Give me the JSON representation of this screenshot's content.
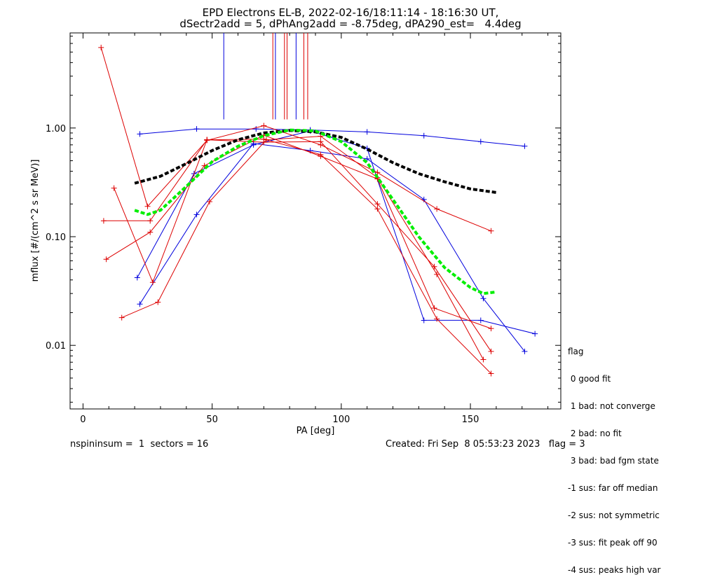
{
  "header": {
    "title_line1": "EPD Electrons EL-B, 2022-02-16/18:11:14 - 18:16:30 UT,",
    "title_line2": "dSectr2add = 5, dPhAng2add = -8.75deg, dPA290_est=   4.4deg"
  },
  "footer": {
    "left": "nspininsum =  1  sectors = 16",
    "right": "Created: Fri Sep  8 05:53:23 2023   flag = 3"
  },
  "flag_legend": {
    "title": "flag",
    "lines": [
      " 0 good fit",
      " 1 bad: not converge",
      " 2 bad: no fit",
      " 3 bad: bad fgm state",
      "-1 sus: far off median",
      "-2 sus: not symmetric",
      "-3 sus: fit peak off 90",
      "-4 sus: peaks high var"
    ]
  },
  "chart_data": {
    "type": "line",
    "xlabel": "PA [deg]",
    "ylabel": "mflux [#/(cm^2 s sr MeV)]",
    "xlim": [
      -5,
      185
    ],
    "ylim": [
      0.0026,
      7.5
    ],
    "yscale": "log",
    "xticks": [
      0,
      50,
      100,
      150
    ],
    "yticks": [
      0.01,
      0.1,
      1.0
    ],
    "ytick_labels": [
      "0.01",
      "0.10",
      "1.00"
    ],
    "colors": {
      "red": "#dd0000",
      "blue": "#0000dd",
      "black": "#000000",
      "green": "#00ee00"
    },
    "vertical_lines": [
      {
        "x": 54.5,
        "color": "#0000dd"
      },
      {
        "x": 73.5,
        "color": "#dd0000"
      },
      {
        "x": 74.5,
        "color": "#0000dd"
      },
      {
        "x": 78.0,
        "color": "#dd0000"
      },
      {
        "x": 79.0,
        "color": "#dd0000"
      },
      {
        "x": 82.5,
        "color": "#0000dd"
      },
      {
        "x": 85.5,
        "color": "#dd0000"
      },
      {
        "x": 87.0,
        "color": "#dd0000"
      }
    ],
    "vertical_lines_ylow": 1.2,
    "series": [
      {
        "color": "#0000dd",
        "points": [
          [
            22,
            0.88
          ],
          [
            44,
            0.98
          ],
          [
            67,
            0.98
          ],
          [
            88,
            0.96
          ],
          [
            110,
            0.92
          ],
          [
            132,
            0.85
          ],
          [
            154,
            0.75
          ],
          [
            171,
            0.68
          ]
        ]
      },
      {
        "color": "#0000dd",
        "points": [
          [
            22,
            0.024
          ],
          [
            44,
            0.16
          ],
          [
            66,
            0.72
          ],
          [
            88,
            0.62
          ],
          [
            110,
            0.52
          ],
          [
            132,
            0.22
          ],
          [
            155,
            0.027
          ],
          [
            171,
            0.0088
          ]
        ]
      },
      {
        "color": "#0000dd",
        "points": [
          [
            21,
            0.042
          ],
          [
            43,
            0.38
          ],
          [
            66,
            0.7
          ],
          [
            88,
            0.94
          ],
          [
            110,
            0.65
          ],
          [
            132,
            0.017
          ],
          [
            154,
            0.017
          ],
          [
            175,
            0.0128
          ]
        ]
      },
      {
        "color": "#dd0000",
        "points": [
          [
            7,
            5.5
          ],
          [
            25,
            0.19
          ],
          [
            48,
            0.77
          ],
          [
            70,
            1.05
          ],
          [
            92,
            0.7
          ],
          [
            114,
            0.39
          ],
          [
            137,
            0.18
          ],
          [
            158,
            0.113
          ]
        ]
      },
      {
        "color": "#dd0000",
        "points": [
          [
            8,
            0.14
          ],
          [
            26,
            0.14
          ],
          [
            48,
            0.78
          ],
          [
            70,
            0.74
          ],
          [
            92,
            0.75
          ],
          [
            114,
            0.2
          ],
          [
            136,
            0.053
          ],
          [
            158,
            0.0088
          ]
        ]
      },
      {
        "color": "#dd0000",
        "points": [
          [
            9,
            0.062
          ],
          [
            26,
            0.11
          ],
          [
            47,
            0.45
          ],
          [
            70,
            0.86
          ],
          [
            92,
            0.55
          ],
          [
            114,
            0.34
          ],
          [
            136,
            0.022
          ],
          [
            158,
            0.0143
          ]
        ]
      },
      {
        "color": "#dd0000",
        "points": [
          [
            12,
            0.28
          ],
          [
            27,
            0.038
          ],
          [
            48,
            0.78
          ],
          [
            70,
            0.79
          ],
          [
            92,
            0.57
          ],
          [
            114,
            0.18
          ],
          [
            137,
            0.0175
          ],
          [
            158,
            0.0055
          ]
        ]
      },
      {
        "color": "#dd0000",
        "points": [
          [
            15,
            0.018
          ],
          [
            29,
            0.025
          ],
          [
            49,
            0.21
          ],
          [
            71,
            0.78
          ],
          [
            92,
            0.84
          ],
          [
            114,
            0.35
          ],
          [
            137,
            0.045
          ],
          [
            155,
            0.0074
          ]
        ]
      }
    ],
    "fits": [
      {
        "color": "#000000",
        "points": [
          [
            20,
            0.31
          ],
          [
            30,
            0.36
          ],
          [
            40,
            0.47
          ],
          [
            50,
            0.62
          ],
          [
            60,
            0.78
          ],
          [
            70,
            0.9
          ],
          [
            80,
            0.95
          ],
          [
            90,
            0.92
          ],
          [
            100,
            0.82
          ],
          [
            110,
            0.64
          ],
          [
            120,
            0.48
          ],
          [
            130,
            0.38
          ],
          [
            140,
            0.32
          ],
          [
            150,
            0.275
          ],
          [
            160,
            0.255
          ]
        ]
      },
      {
        "color": "#00ee00",
        "points": [
          [
            20,
            0.175
          ],
          [
            25,
            0.16
          ],
          [
            30,
            0.175
          ],
          [
            40,
            0.29
          ],
          [
            50,
            0.49
          ],
          [
            60,
            0.68
          ],
          [
            70,
            0.85
          ],
          [
            80,
            0.96
          ],
          [
            90,
            0.94
          ],
          [
            100,
            0.75
          ],
          [
            110,
            0.48
          ],
          [
            120,
            0.22
          ],
          [
            130,
            0.1
          ],
          [
            140,
            0.052
          ],
          [
            150,
            0.034
          ],
          [
            155,
            0.03
          ],
          [
            160,
            0.031
          ]
        ]
      }
    ]
  }
}
